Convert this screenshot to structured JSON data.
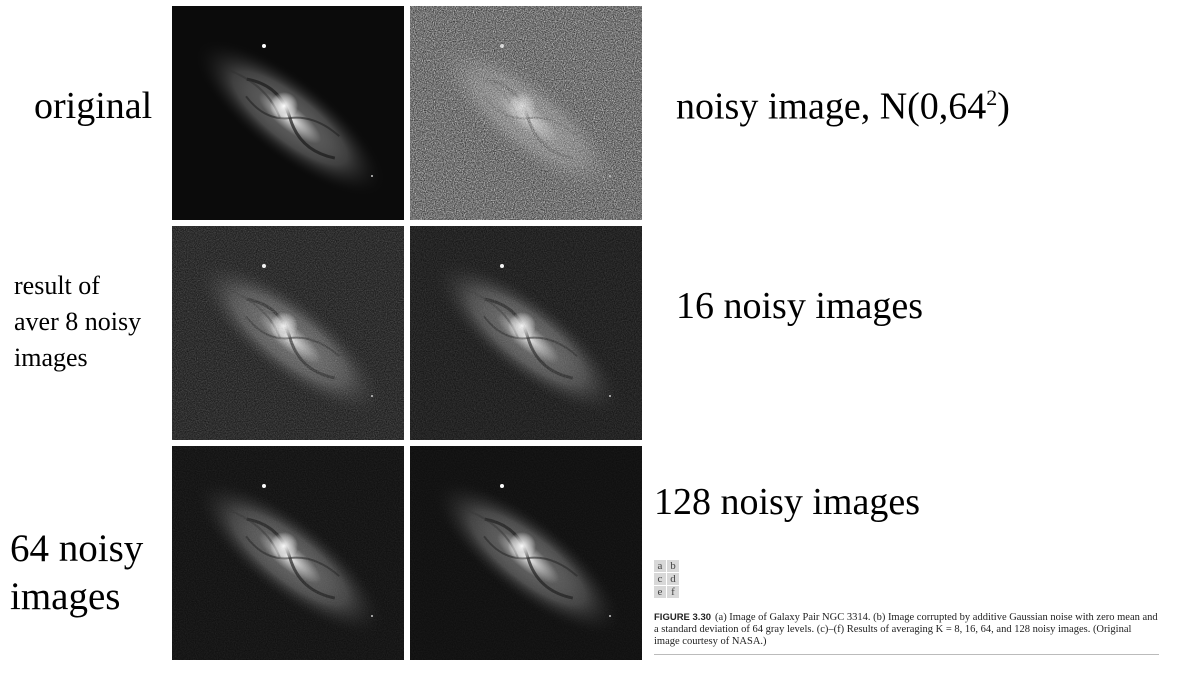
{
  "labels": {
    "original": "original",
    "noisy": "noisy image, N(0,64",
    "noisy_sup": "2",
    "noisy_end": ")",
    "aver8_l1": "result of",
    "aver8_l2": "aver 8 noisy",
    "aver8_l3": "images",
    "k16": "16 noisy images",
    "k64_l1": "64 noisy",
    "k64_l2": "images",
    "k128": "128 noisy images"
  },
  "legend": {
    "row1": [
      "a",
      "b"
    ],
    "row2": [
      "c",
      "d"
    ],
    "row3": [
      "e",
      "f"
    ]
  },
  "caption": {
    "figure": "FIGURE 3.30",
    "text": "(a) Image of Galaxy Pair NGC 3314. (b) Image corrupted by additive Gaussian noise with zero mean and a standard deviation of 64 gray levels. (c)–(f) Results of averaging K = 8, 16, 64, and 128 noisy images. (Original image courtesy of NASA.)"
  },
  "panels": [
    {
      "id": "a",
      "noise": 0.0
    },
    {
      "id": "b",
      "noise": 1.0
    },
    {
      "id": "c",
      "noise": 0.35
    },
    {
      "id": "d",
      "noise": 0.25
    },
    {
      "id": "e",
      "noise": 0.12
    },
    {
      "id": "f",
      "noise": 0.08
    }
  ]
}
